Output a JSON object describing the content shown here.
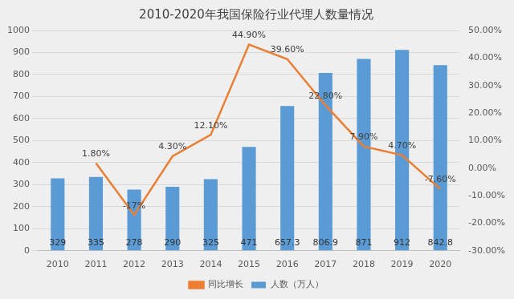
{
  "chart_data": {
    "type": "bar",
    "title": "2010-2020年我国保险行业代理人数量情况",
    "categories": [
      "2010",
      "2011",
      "2012",
      "2013",
      "2014",
      "2015",
      "2016",
      "2017",
      "2018",
      "2019",
      "2020"
    ],
    "series": [
      {
        "name": "人数（万人）",
        "type": "bar",
        "color": "#5b9bd5",
        "values": [
          329,
          335,
          278,
          290,
          325,
          471,
          657.3,
          806.9,
          871,
          912,
          842.8
        ]
      },
      {
        "name": "同比增长",
        "type": "line",
        "axis": "y2",
        "color": "#ed7d31",
        "marker": "none",
        "values": [
          null,
          1.8,
          -17,
          4.3,
          12.1,
          44.9,
          39.6,
          22.8,
          7.9,
          4.7,
          -7.6
        ],
        "value_labels": [
          null,
          "1.80%",
          "-17%",
          "4.30%",
          "12.10%",
          "44.90%",
          "39.60%",
          "22.80%",
          "7.90%",
          "4.70%",
          "-7.60%"
        ]
      }
    ],
    "ylim": [
      0,
      1000
    ],
    "yticks": [
      0,
      100,
      200,
      300,
      400,
      500,
      600,
      700,
      800,
      900,
      1000
    ],
    "y2lim": [
      -30,
      50
    ],
    "y2ticks": [
      {
        "value": -30,
        "label": "-30.00%"
      },
      {
        "value": -20,
        "label": "-20.00%"
      },
      {
        "value": -10,
        "label": "-10.00%"
      },
      {
        "value": 0,
        "label": "0.00%"
      },
      {
        "value": 10,
        "label": "10.00%"
      },
      {
        "value": 20,
        "label": "20.00%"
      },
      {
        "value": 30,
        "label": "30.00%"
      },
      {
        "value": 40,
        "label": "40.00%"
      },
      {
        "value": 50,
        "label": "50.00%"
      }
    ],
    "grid": true,
    "legend": "bottom",
    "data_labels": true
  }
}
